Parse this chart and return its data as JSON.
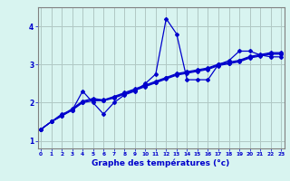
{
  "xlabel": "Graphe des températures (°c)",
  "background_color": "#d8f4f0",
  "grid_color": "#b0c8c4",
  "line_color": "#0000cc",
  "spine_color": "#808080",
  "x_ticks": [
    0,
    1,
    2,
    3,
    4,
    5,
    6,
    7,
    8,
    9,
    10,
    11,
    12,
    13,
    14,
    15,
    16,
    17,
    18,
    19,
    20,
    21,
    22,
    23
  ],
  "ylim": [
    0.8,
    4.5
  ],
  "xlim": [
    -0.3,
    23.3
  ],
  "series": [
    [
      1.3,
      1.5,
      1.7,
      1.8,
      2.3,
      2.0,
      1.7,
      2.0,
      2.2,
      2.3,
      2.5,
      2.75,
      4.2,
      3.8,
      2.6,
      2.6,
      2.6,
      3.0,
      3.1,
      3.35,
      3.35,
      3.25,
      3.2,
      3.2
    ],
    [
      1.3,
      1.5,
      1.65,
      1.8,
      2.0,
      2.05,
      2.05,
      2.12,
      2.22,
      2.32,
      2.42,
      2.52,
      2.62,
      2.72,
      2.77,
      2.82,
      2.87,
      2.97,
      3.02,
      3.07,
      3.17,
      3.22,
      3.27,
      3.27
    ],
    [
      1.3,
      1.5,
      1.65,
      1.82,
      2.02,
      2.08,
      2.06,
      2.14,
      2.24,
      2.34,
      2.44,
      2.54,
      2.64,
      2.74,
      2.79,
      2.84,
      2.89,
      2.99,
      3.04,
      3.09,
      3.19,
      3.24,
      3.29,
      3.29
    ],
    [
      1.3,
      1.5,
      1.67,
      1.84,
      2.04,
      2.11,
      2.07,
      2.16,
      2.26,
      2.36,
      2.46,
      2.56,
      2.66,
      2.76,
      2.81,
      2.86,
      2.91,
      3.01,
      3.06,
      3.11,
      3.21,
      3.26,
      3.31,
      3.31
    ]
  ]
}
